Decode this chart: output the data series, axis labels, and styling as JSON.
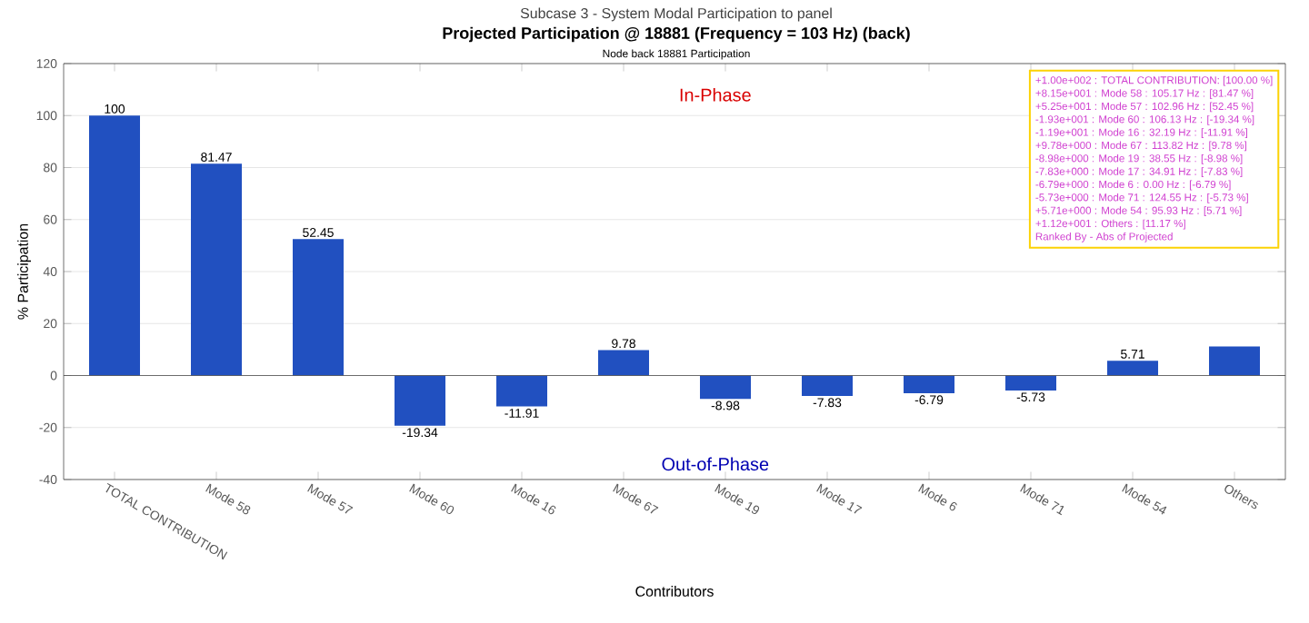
{
  "chart_data": {
    "type": "bar",
    "title": "Subcase 3 - System Modal Participation to panel",
    "subtitle": "Projected Participation @ 18881 (Frequency = 103 Hz) (back)",
    "xlabel": "Contributors",
    "ylabel": "% Participation",
    "categories": [
      "TOTAL CONTRIBUTION",
      "Mode 58",
      "Mode 57",
      "Mode 60",
      "Mode 16",
      "Mode 67",
      "Mode 19",
      "Mode 17",
      "Mode 6",
      "Mode 71",
      "Mode 54",
      "Others"
    ],
    "values": [
      100,
      81.47,
      52.45,
      -19.34,
      -11.91,
      9.78,
      -8.98,
      -7.83,
      -6.79,
      -5.73,
      5.71,
      11.17
    ],
    "value_labels": [
      "100",
      "81.47",
      "52.45",
      "-19.34",
      "-11.91",
      "9.78",
      "-8.98",
      "-7.83",
      "-6.79",
      "-5.73",
      "5.71",
      null
    ],
    "color": "#2150c0",
    "ylim": [
      -40,
      120
    ],
    "yticks": [
      -40,
      -20,
      0,
      20,
      40,
      60,
      80,
      100,
      120
    ],
    "grid": "y",
    "annotations": [
      "Node      back      18881 Participation",
      "In-Phase",
      "Out-of-Phase",
      "+1.00e+002 : TOTAL CONTRIBUTION: [100.00 %]",
      "+8.15e+001 : Mode  58  : 105.17 Hz : [81.47 %]",
      "+5.25e+001 : Mode  57  : 102.96 Hz : [52.45 %]",
      "-1.93e+001 : Mode  60  : 106.13 Hz : [-19.34 %]",
      "-1.19e+001 : Mode  16  : 32.19 Hz : [-11.91 %]",
      "+9.78e+000 : Mode  67  : 113.82 Hz : [9.78 %]",
      "-8.98e+000 : Mode  19  : 38.55 Hz : [-8.98 %]",
      "-7.83e+000 : Mode  17  : 34.91 Hz : [-7.83 %]",
      "-6.79e+000 : Mode  6  : 0.00 Hz : [-6.79 %]",
      "-5.73e+000 : Mode  71  : 124.55 Hz : [-5.73 %]",
      "+5.71e+000 : Mode  54  : 95.93 Hz : [5.71 %]",
      "+1.12e+001 : Others  : [11.17 %]",
      "Ranked By - Abs of Projected"
    ]
  }
}
